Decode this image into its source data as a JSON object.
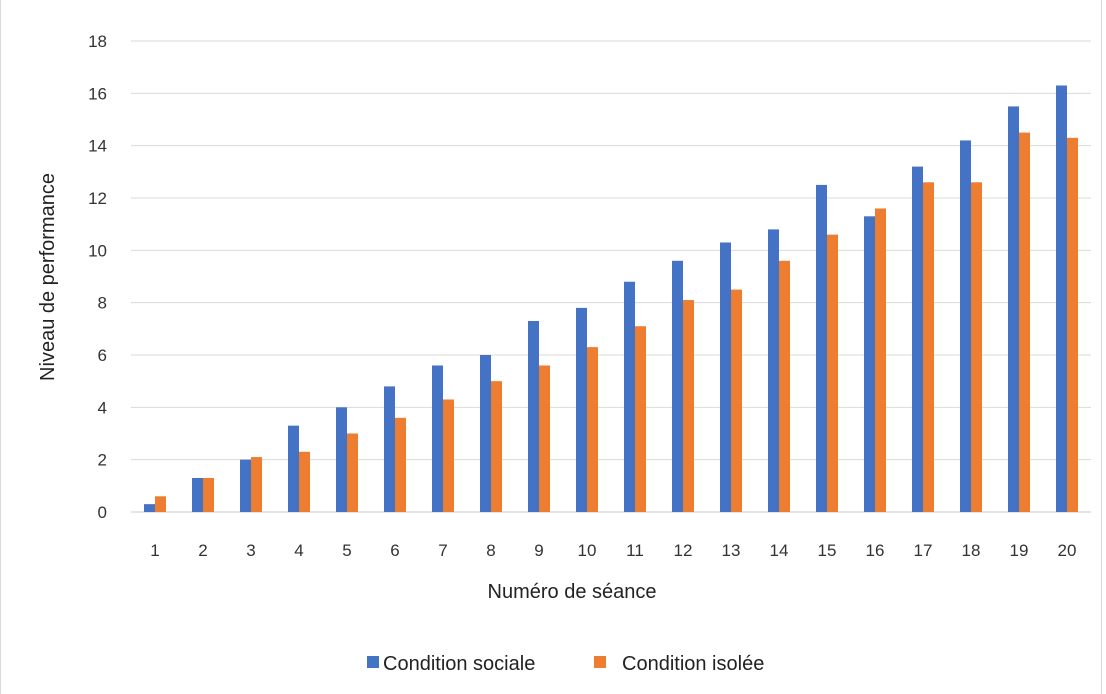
{
  "chart_data": {
    "type": "bar",
    "categories": [
      "1",
      "2",
      "3",
      "4",
      "5",
      "6",
      "7",
      "8",
      "9",
      "10",
      "11",
      "12",
      "13",
      "14",
      "15",
      "16",
      "17",
      "18",
      "19",
      "20"
    ],
    "series": [
      {
        "name": "Condition sociale",
        "color": "#4472c4",
        "values": [
          0.3,
          1.3,
          2.0,
          3.3,
          4.0,
          4.8,
          5.6,
          6.0,
          7.3,
          7.8,
          8.8,
          9.6,
          10.3,
          10.8,
          12.5,
          11.3,
          13.2,
          14.2,
          15.5,
          16.3
        ]
      },
      {
        "name": "Condition isolée",
        "color": "#ed7d31",
        "values": [
          0.6,
          1.3,
          2.1,
          2.3,
          3.0,
          3.6,
          4.3,
          5.0,
          5.6,
          6.3,
          7.1,
          8.1,
          8.5,
          9.6,
          10.6,
          11.6,
          12.6,
          12.6,
          14.5,
          14.3
        ]
      }
    ],
    "title": "",
    "xlabel": "Numéro de séance",
    "ylabel": "Niveau de performance",
    "ylim": [
      0,
      18
    ],
    "yticks": [
      "0",
      "2",
      "4",
      "6",
      "8",
      "10",
      "12",
      "14",
      "16",
      "18"
    ],
    "grid": true,
    "legend_position": "bottom"
  }
}
